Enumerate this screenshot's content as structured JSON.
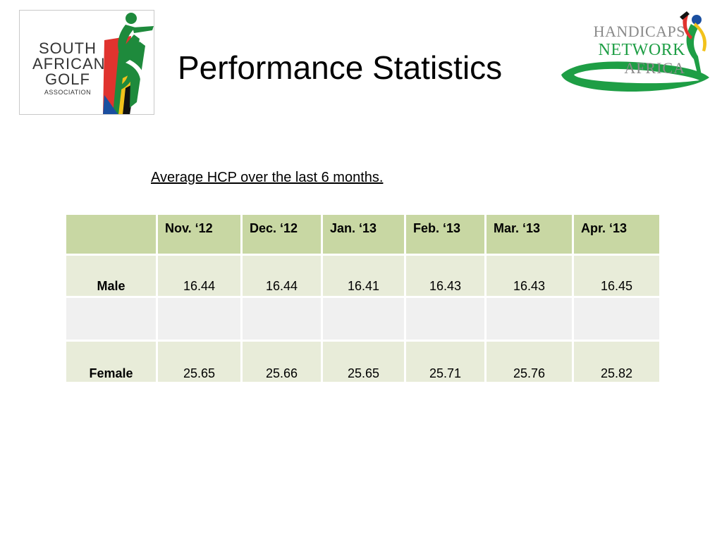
{
  "slide": {
    "title": "Performance Statistics",
    "subtitle": "Average HCP over the last 6 months."
  },
  "logos": {
    "left": {
      "name": "south-african-golf-association-logo",
      "text_lines": [
        "SOUTH",
        "AFRICAN",
        "GOLF",
        "ASSOCIATION"
      ],
      "colors": {
        "red": "#e0332e",
        "green": "#1e8a3c",
        "yellow": "#f2c21b",
        "blue": "#1b4fa0",
        "black": "#111111"
      }
    },
    "right": {
      "name": "handicaps-network-africa-logo",
      "text_lines": [
        "HANDICAPS",
        "NETWORK",
        "AFRICA"
      ],
      "colors": {
        "green": "#1e9e45",
        "grey": "#8a8a8a"
      }
    }
  },
  "table": {
    "columns": [
      "Nov. ‘12",
      "Dec. ‘12",
      "Jan. ‘13",
      "Feb. ‘13",
      "Mar. ‘13",
      "Apr. ‘13"
    ],
    "rows": [
      {
        "label": "Male",
        "values": [
          "16.44",
          "16.44",
          "16.41",
          "16.43",
          "16.43",
          "16.45"
        ]
      },
      {
        "label": "",
        "values": [
          "",
          "",
          "",
          "",
          "",
          ""
        ]
      },
      {
        "label": "Female",
        "values": [
          "25.65",
          "25.66",
          "25.65",
          "25.71",
          "25.76",
          "25.82"
        ]
      }
    ],
    "colors": {
      "header": "#c8d7a3",
      "row_light": "#e8ecd9",
      "row_grey": "#f0f0f0"
    }
  }
}
